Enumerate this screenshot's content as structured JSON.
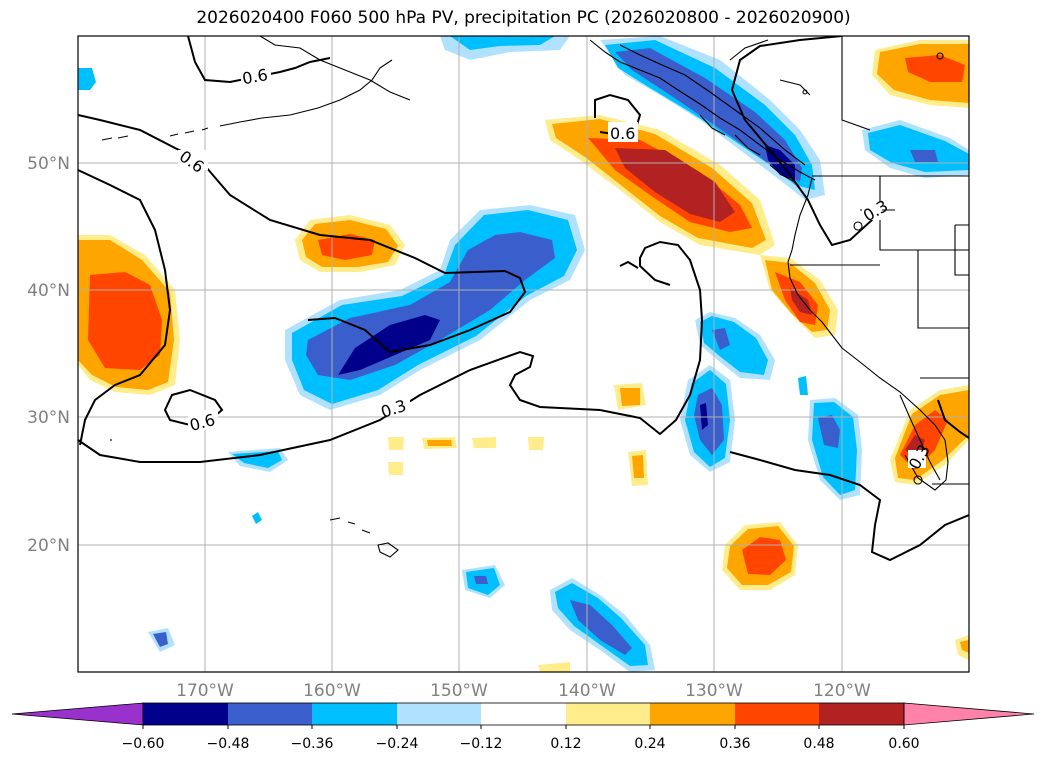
{
  "title": "2026020400 F060 500 hPa PV, precipitation PC (2026020800 - 2026020900)",
  "lat_labels": [
    "50°N",
    "40°N",
    "30°N",
    "20°N"
  ],
  "lon_labels": [
    "170°W",
    "160°W",
    "150°W",
    "140°W",
    "130°W",
    "120°W"
  ],
  "contour_labels": [
    "0.6",
    "0.6",
    "0.6",
    "0.3",
    "0.6",
    "0.3",
    "0.3"
  ],
  "colorbar": {
    "tick_labels": [
      "−0.60",
      "−0.48",
      "−0.36",
      "−0.24",
      "−0.12",
      "0.12",
      "0.24",
      "0.36",
      "0.48",
      "0.60"
    ],
    "colors": [
      "#9932cc",
      "#00008b",
      "#3a5fcd",
      "#00bfff",
      "#b0e2ff",
      "#ffffff",
      "#ffec8b",
      "#ffa500",
      "#ff4500",
      "#b22222",
      "#ff82ab"
    ]
  },
  "shading_colors": {
    "neg_light": "#b0e2ff",
    "neg_mid": "#00bfff",
    "neg_strong": "#3a5fcd",
    "neg_max": "#00008b",
    "pos_light": "#ffec8b",
    "pos_mid": "#ffa500",
    "pos_strong": "#ff4500",
    "pos_max": "#b22222"
  }
}
